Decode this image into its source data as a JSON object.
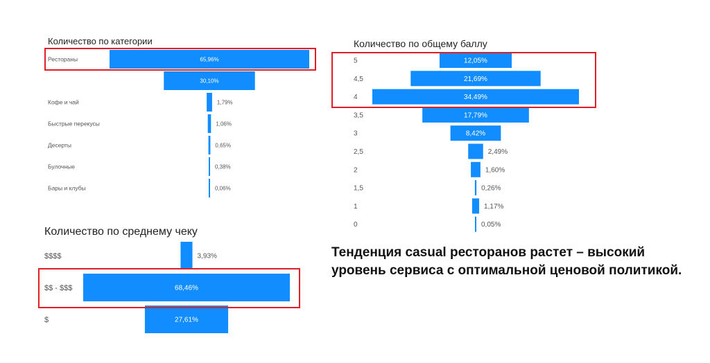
{
  "colors": {
    "bar": "#118dff",
    "label": "#555555",
    "highlight": "#e01e26"
  },
  "charts": {
    "category": {
      "title": "Количество по категории",
      "chart_data": {
        "type": "bar",
        "orientation": "funnel",
        "title": "Количество по категории",
        "categories": [
          "Рестораны",
          "",
          "Кофе и чай",
          "Быстрые перекусы",
          "Десерты",
          "Булочные",
          "Бары и клубы"
        ],
        "values": [
          65.96,
          30.1,
          1.79,
          1.06,
          0.65,
          0.38,
          0.06
        ],
        "value_labels": [
          "65,96%",
          "30,10%",
          "1,79%",
          "1,06%",
          "0,65%",
          "0,38%",
          "0,06%"
        ],
        "highlighted": [
          "Рестораны"
        ]
      }
    },
    "score": {
      "title": "Количество по общему баллу",
      "chart_data": {
        "type": "bar",
        "orientation": "funnel",
        "title": "Количество по общему баллу",
        "categories": [
          "5",
          "4,5",
          "4",
          "3,5",
          "3",
          "2,5",
          "2",
          "1,5",
          "1",
          "0"
        ],
        "values": [
          12.05,
          21.69,
          34.49,
          17.79,
          8.42,
          2.49,
          1.6,
          0.26,
          1.17,
          0.05
        ],
        "value_labels": [
          "12,05%",
          "21,69%",
          "34,49%",
          "17,79%",
          "8,42%",
          "2,49%",
          "1,60%",
          "0,26%",
          "1,17%",
          "0,05%"
        ],
        "highlighted": [
          "5",
          "4,5",
          "4"
        ]
      }
    },
    "check": {
      "title": "Количество по среднему чеку",
      "chart_data": {
        "type": "bar",
        "orientation": "funnel",
        "title": "Количество по среднему чеку",
        "categories": [
          "$$$$",
          "$$ - $$$",
          "$"
        ],
        "values": [
          3.93,
          68.46,
          27.61
        ],
        "value_labels": [
          "3,93%",
          "68,46%",
          "27,61%"
        ],
        "highlighted": [
          "$$ - $$$"
        ]
      }
    }
  },
  "caption": "Тенденция casual ресторанов растет – высокий уровень сервиса с оптимальной ценовой политикой."
}
